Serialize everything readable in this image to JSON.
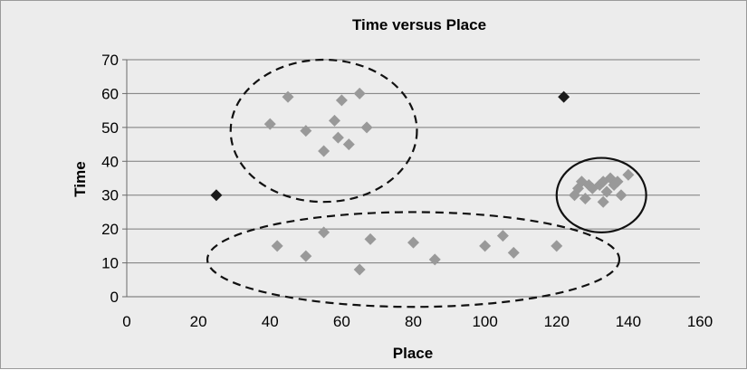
{
  "chart_data": {
    "type": "scatter",
    "title": "Time versus Place",
    "xlabel": "Place",
    "ylabel": "Time",
    "xlim": [
      0,
      160
    ],
    "ylim": [
      0,
      70
    ],
    "xticks": [
      0,
      20,
      40,
      60,
      80,
      100,
      120,
      140,
      160
    ],
    "yticks": [
      0,
      10,
      20,
      30,
      40,
      50,
      60,
      70
    ],
    "grid": "horizontal",
    "series": [
      {
        "color": "#999999",
        "marker": "diamond",
        "points": [
          [
            40,
            51
          ],
          [
            45,
            59
          ],
          [
            50,
            49
          ],
          [
            55,
            43
          ],
          [
            58,
            52
          ],
          [
            59,
            47
          ],
          [
            60,
            58
          ],
          [
            62,
            45
          ],
          [
            65,
            60
          ],
          [
            67,
            50
          ],
          [
            42,
            15
          ],
          [
            50,
            12
          ],
          [
            55,
            19
          ],
          [
            65,
            8
          ],
          [
            68,
            17
          ],
          [
            80,
            16
          ],
          [
            86,
            11
          ],
          [
            100,
            15
          ],
          [
            105,
            18
          ],
          [
            108,
            13
          ],
          [
            120,
            15
          ],
          [
            125,
            30
          ],
          [
            126,
            32
          ],
          [
            127,
            34
          ],
          [
            128,
            29
          ],
          [
            129,
            33
          ],
          [
            130,
            32
          ],
          [
            132,
            33
          ],
          [
            133,
            34
          ],
          [
            133,
            28
          ],
          [
            134,
            31
          ],
          [
            135,
            35
          ],
          [
            136,
            33
          ],
          [
            137,
            34
          ],
          [
            138,
            30
          ],
          [
            140,
            36
          ]
        ]
      },
      {
        "color": "#1a1a1a",
        "marker": "diamond",
        "points": [
          [
            25,
            30
          ],
          [
            122,
            59
          ]
        ]
      }
    ],
    "annotations": [
      {
        "shape": "ellipse",
        "style": "dashed",
        "cx": 55,
        "cy": 49,
        "rx": 26,
        "ry": 21
      },
      {
        "shape": "ellipse",
        "style": "dashed",
        "cx": 80,
        "cy": 11,
        "rx": 57.5,
        "ry": 14
      },
      {
        "shape": "ellipse",
        "style": "solid",
        "cx": 132.5,
        "cy": 30,
        "rx": 12.5,
        "ry": 11
      }
    ]
  }
}
